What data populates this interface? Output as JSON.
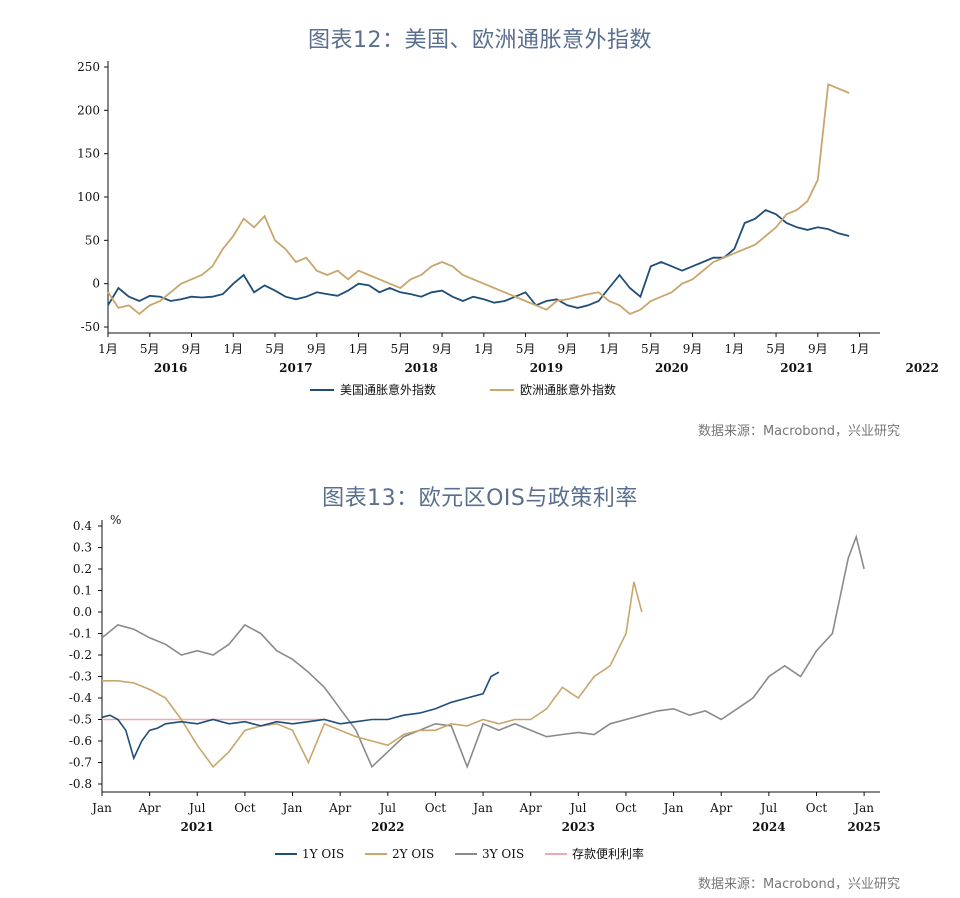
{
  "fig1": {
    "title": "图表12：美国、欧洲通胀意外指数",
    "source": "数据来源：Macrobond，兴业研究",
    "y_ticks": [
      "250",
      "200",
      "150",
      "100",
      "50",
      "0",
      "-50"
    ],
    "x_ticks": [
      "1月",
      "5月",
      "9月",
      "1月",
      "5月",
      "9月",
      "1月",
      "5月",
      "9月",
      "1月",
      "5月",
      "9月",
      "1月",
      "5月",
      "9月",
      "1月",
      "5月",
      "9月",
      "1月"
    ],
    "years": [
      "2016",
      "2017",
      "2018",
      "2019",
      "2020",
      "2021",
      "2022"
    ],
    "legend": [
      "美国通胀意外指数",
      "欧洲通胀意外指数"
    ],
    "colors": [
      "#1f4e79",
      "#c9a66b"
    ]
  },
  "fig2": {
    "title": "图表13：欧元区OIS与政策利率",
    "source": "数据来源：Macrobond，兴业研究",
    "unit": "%",
    "y_ticks": [
      "0.4",
      "0.3",
      "0.2",
      "0.1",
      "0.0",
      "-0.1",
      "-0.2",
      "-0.3",
      "-0.4",
      "-0.5",
      "-0.6",
      "-0.7",
      "-0.8"
    ],
    "x_ticks": [
      "Jan",
      "Apr",
      "Jul",
      "Oct",
      "Jan",
      "Apr",
      "Jul",
      "Oct",
      "Jan",
      "Apr",
      "Jul",
      "Oct",
      "Jan",
      "Apr",
      "Jul",
      "Oct",
      "Jan"
    ],
    "years": [
      "2021",
      "2022",
      "2023",
      "2024",
      "2025"
    ],
    "legend": [
      "1Y OIS",
      "2Y OIS",
      "3Y OIS",
      "存款便利利率"
    ],
    "colors": [
      "#1f4e79",
      "#c9a66b",
      "#8a8a8a",
      "#f2a9a9"
    ]
  },
  "chart_data": [
    {
      "type": "line",
      "title": "图表12：美国、欧洲通胀意外指数",
      "x_unit": "months since Jan 2016",
      "ylim": [
        -50,
        250
      ],
      "xlim": [
        0,
        73
      ],
      "series": [
        {
          "name": "美国通胀意外指数",
          "color": "#1f4e79",
          "x": [
            0,
            1,
            2,
            3,
            4,
            5,
            6,
            7,
            8,
            9,
            10,
            11,
            12,
            13,
            14,
            15,
            16,
            17,
            18,
            19,
            20,
            21,
            22,
            23,
            24,
            25,
            26,
            27,
            28,
            29,
            30,
            31,
            32,
            33,
            34,
            35,
            36,
            37,
            38,
            39,
            40,
            41,
            42,
            43,
            44,
            45,
            46,
            47,
            48,
            49,
            50,
            51,
            52,
            53,
            54,
            55,
            56,
            57,
            58,
            59,
            60,
            61,
            62,
            63,
            64,
            65,
            66,
            67,
            68,
            69,
            70,
            71
          ],
          "y": [
            -25,
            -5,
            -15,
            -20,
            -14,
            -15,
            -20,
            -18,
            -15,
            -16,
            -15,
            -12,
            0,
            10,
            -10,
            -2,
            -8,
            -15,
            -18,
            -15,
            -10,
            -12,
            -14,
            -8,
            0,
            -2,
            -10,
            -5,
            -10,
            -12,
            -15,
            -10,
            -8,
            -15,
            -20,
            -15,
            -18,
            -22,
            -20,
            -15,
            -10,
            -25,
            -20,
            -18,
            -25,
            -28,
            -25,
            -20,
            -5,
            10,
            -5,
            -15,
            20,
            25,
            20,
            15,
            20,
            25,
            30,
            30,
            40,
            70,
            75,
            85,
            80,
            70,
            65,
            62,
            65,
            63,
            58,
            55
          ]
        },
        {
          "name": "欧洲通胀意外指数",
          "color": "#c9a66b",
          "x": [
            0,
            1,
            2,
            3,
            4,
            5,
            6,
            7,
            8,
            9,
            10,
            11,
            12,
            13,
            14,
            15,
            16,
            17,
            18,
            19,
            20,
            21,
            22,
            23,
            24,
            25,
            26,
            27,
            28,
            29,
            30,
            31,
            32,
            33,
            34,
            35,
            36,
            37,
            38,
            39,
            40,
            41,
            42,
            43,
            44,
            45,
            46,
            47,
            48,
            49,
            50,
            51,
            52,
            53,
            54,
            55,
            56,
            57,
            58,
            59,
            60,
            61,
            62,
            63,
            64,
            65,
            66,
            67,
            68,
            69,
            70,
            71
          ],
          "y": [
            -10,
            -28,
            -25,
            -35,
            -25,
            -20,
            -10,
            0,
            5,
            10,
            20,
            40,
            55,
            75,
            65,
            78,
            50,
            40,
            25,
            30,
            15,
            10,
            15,
            5,
            15,
            10,
            5,
            0,
            -5,
            5,
            10,
            20,
            25,
            20,
            10,
            5,
            0,
            -5,
            -10,
            -15,
            -20,
            -25,
            -30,
            -20,
            -18,
            -15,
            -12,
            -10,
            -20,
            -25,
            -35,
            -30,
            -20,
            -15,
            -10,
            0,
            5,
            15,
            25,
            30,
            35,
            40,
            45,
            55,
            65,
            80,
            85,
            95,
            120,
            230,
            225,
            220
          ]
        }
      ],
      "x_ticks": [
        "1月",
        "5月",
        "9月",
        "1月",
        "5月",
        "9月",
        "1月",
        "5月",
        "9月",
        "1月",
        "5月",
        "9月",
        "1月",
        "5月",
        "9月",
        "1月",
        "5月",
        "9月",
        "1月"
      ],
      "years": [
        "2016",
        "2017",
        "2018",
        "2019",
        "2020",
        "2021",
        "2022"
      ],
      "ylabel": "",
      "xlabel": "",
      "grid": false,
      "legend_position": "bottom"
    },
    {
      "type": "line",
      "title": "图表13：欧元区OIS与政策利率",
      "x_unit": "months since Jan 2021",
      "ylim": [
        -0.8,
        0.4
      ],
      "xlim": [
        0,
        49
      ],
      "unit": "%",
      "series": [
        {
          "name": "1Y OIS",
          "color": "#1f4e79",
          "x": [
            0,
            0.5,
            1,
            1.5,
            2,
            2.5,
            3,
            3.5,
            4,
            5,
            6,
            7,
            8,
            9,
            10,
            11,
            12,
            13,
            14,
            15,
            16,
            17,
            18,
            19,
            20,
            21,
            22,
            23,
            24,
            24.5,
            25
          ],
          "y": [
            -0.49,
            -0.48,
            -0.5,
            -0.55,
            -0.68,
            -0.6,
            -0.55,
            -0.54,
            -0.52,
            -0.51,
            -0.52,
            -0.5,
            -0.52,
            -0.51,
            -0.53,
            -0.51,
            -0.52,
            -0.51,
            -0.5,
            -0.52,
            -0.51,
            -0.5,
            -0.5,
            -0.48,
            -0.47,
            -0.45,
            -0.42,
            -0.4,
            -0.38,
            -0.3,
            -0.28
          ]
        },
        {
          "name": "2Y OIS",
          "color": "#c9a66b",
          "x": [
            0,
            1,
            2,
            3,
            4,
            5,
            6,
            7,
            8,
            9,
            10,
            11,
            12,
            13,
            14,
            15,
            16,
            17,
            18,
            19,
            20,
            21,
            22,
            23,
            24,
            25,
            26,
            27,
            28,
            29,
            30,
            31,
            32,
            33,
            33.5,
            34
          ],
          "y": [
            -0.32,
            -0.32,
            -0.33,
            -0.36,
            -0.4,
            -0.5,
            -0.62,
            -0.72,
            -0.65,
            -0.55,
            -0.53,
            -0.52,
            -0.55,
            -0.7,
            -0.52,
            -0.55,
            -0.58,
            -0.6,
            -0.62,
            -0.57,
            -0.55,
            -0.55,
            -0.52,
            -0.53,
            -0.5,
            -0.52,
            -0.5,
            -0.5,
            -0.45,
            -0.35,
            -0.4,
            -0.3,
            -0.25,
            -0.1,
            0.14,
            0.0
          ]
        },
        {
          "name": "3Y OIS",
          "color": "#8a8a8a",
          "x": [
            0,
            1,
            2,
            3,
            4,
            5,
            6,
            7,
            8,
            9,
            10,
            11,
            12,
            13,
            14,
            15,
            16,
            17,
            18,
            19,
            20,
            21,
            22,
            23,
            24,
            25,
            26,
            27,
            28,
            29,
            30,
            31,
            32,
            33,
            34,
            35,
            36,
            37,
            38,
            39,
            40,
            41,
            42,
            43,
            44,
            45,
            46,
            47,
            47.5,
            48
          ],
          "y": [
            -0.12,
            -0.06,
            -0.08,
            -0.12,
            -0.15,
            -0.2,
            -0.18,
            -0.2,
            -0.15,
            -0.06,
            -0.1,
            -0.18,
            -0.22,
            -0.28,
            -0.35,
            -0.45,
            -0.55,
            -0.72,
            -0.65,
            -0.58,
            -0.55,
            -0.52,
            -0.53,
            -0.72,
            -0.52,
            -0.55,
            -0.52,
            -0.55,
            -0.58,
            -0.57,
            -0.56,
            -0.57,
            -0.52,
            -0.5,
            -0.48,
            -0.46,
            -0.45,
            -0.48,
            -0.46,
            -0.5,
            -0.45,
            -0.4,
            -0.3,
            -0.25,
            -0.3,
            -0.18,
            -0.1,
            0.25,
            0.35,
            0.2
          ]
        },
        {
          "name": "存款便利利率",
          "color": "#f2a9a9",
          "x": [
            0,
            14
          ],
          "y": [
            -0.5,
            -0.5
          ]
        }
      ],
      "x_ticks": [
        "Jan",
        "Apr",
        "Jul",
        "Oct",
        "Jan",
        "Apr",
        "Jul",
        "Oct",
        "Jan",
        "Apr",
        "Jul",
        "Oct",
        "Jan",
        "Apr",
        "Jul",
        "Oct",
        "Jan"
      ],
      "years": [
        "2021",
        "2022",
        "2023",
        "2024",
        "2025"
      ],
      "ylabel": "%",
      "xlabel": "",
      "grid": false,
      "legend_position": "bottom"
    }
  ]
}
